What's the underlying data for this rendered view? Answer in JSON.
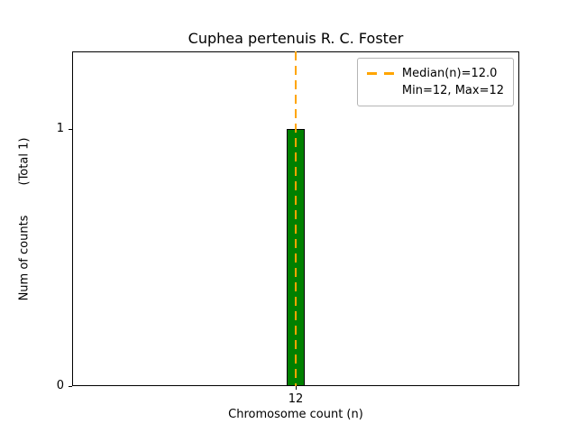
{
  "chart_data": {
    "type": "bar",
    "title": "Cuphea pertenuis R. C. Foster",
    "xlabel": "Chromosome count (n)",
    "ylabel": "Num of counts        (Total 1)",
    "categories": [
      "12"
    ],
    "x": [
      12
    ],
    "values": [
      1
    ],
    "total_counts": 1,
    "bar_width": 0.5,
    "median": 12.0,
    "min": 12,
    "max": 12,
    "xlim": [
      6,
      18
    ],
    "ylim": [
      0,
      1.3
    ],
    "xticks": [
      12
    ],
    "yticks": [
      0,
      1
    ],
    "grid": false,
    "legend_position": "upper right",
    "legend_entries": [
      "Median(n)=12.0",
      "Min=12, Max=12"
    ]
  },
  "labels": {
    "legend_line1": "Median(n)=12.0",
    "legend_line2": "Min=12, Max=12"
  },
  "colors": {
    "bar_fill": "#008000",
    "bar_edge": "#000000",
    "median_line": "#ffa500",
    "legend_border": "#b5b5b5",
    "spine": "#000000",
    "background": "#ffffff"
  }
}
